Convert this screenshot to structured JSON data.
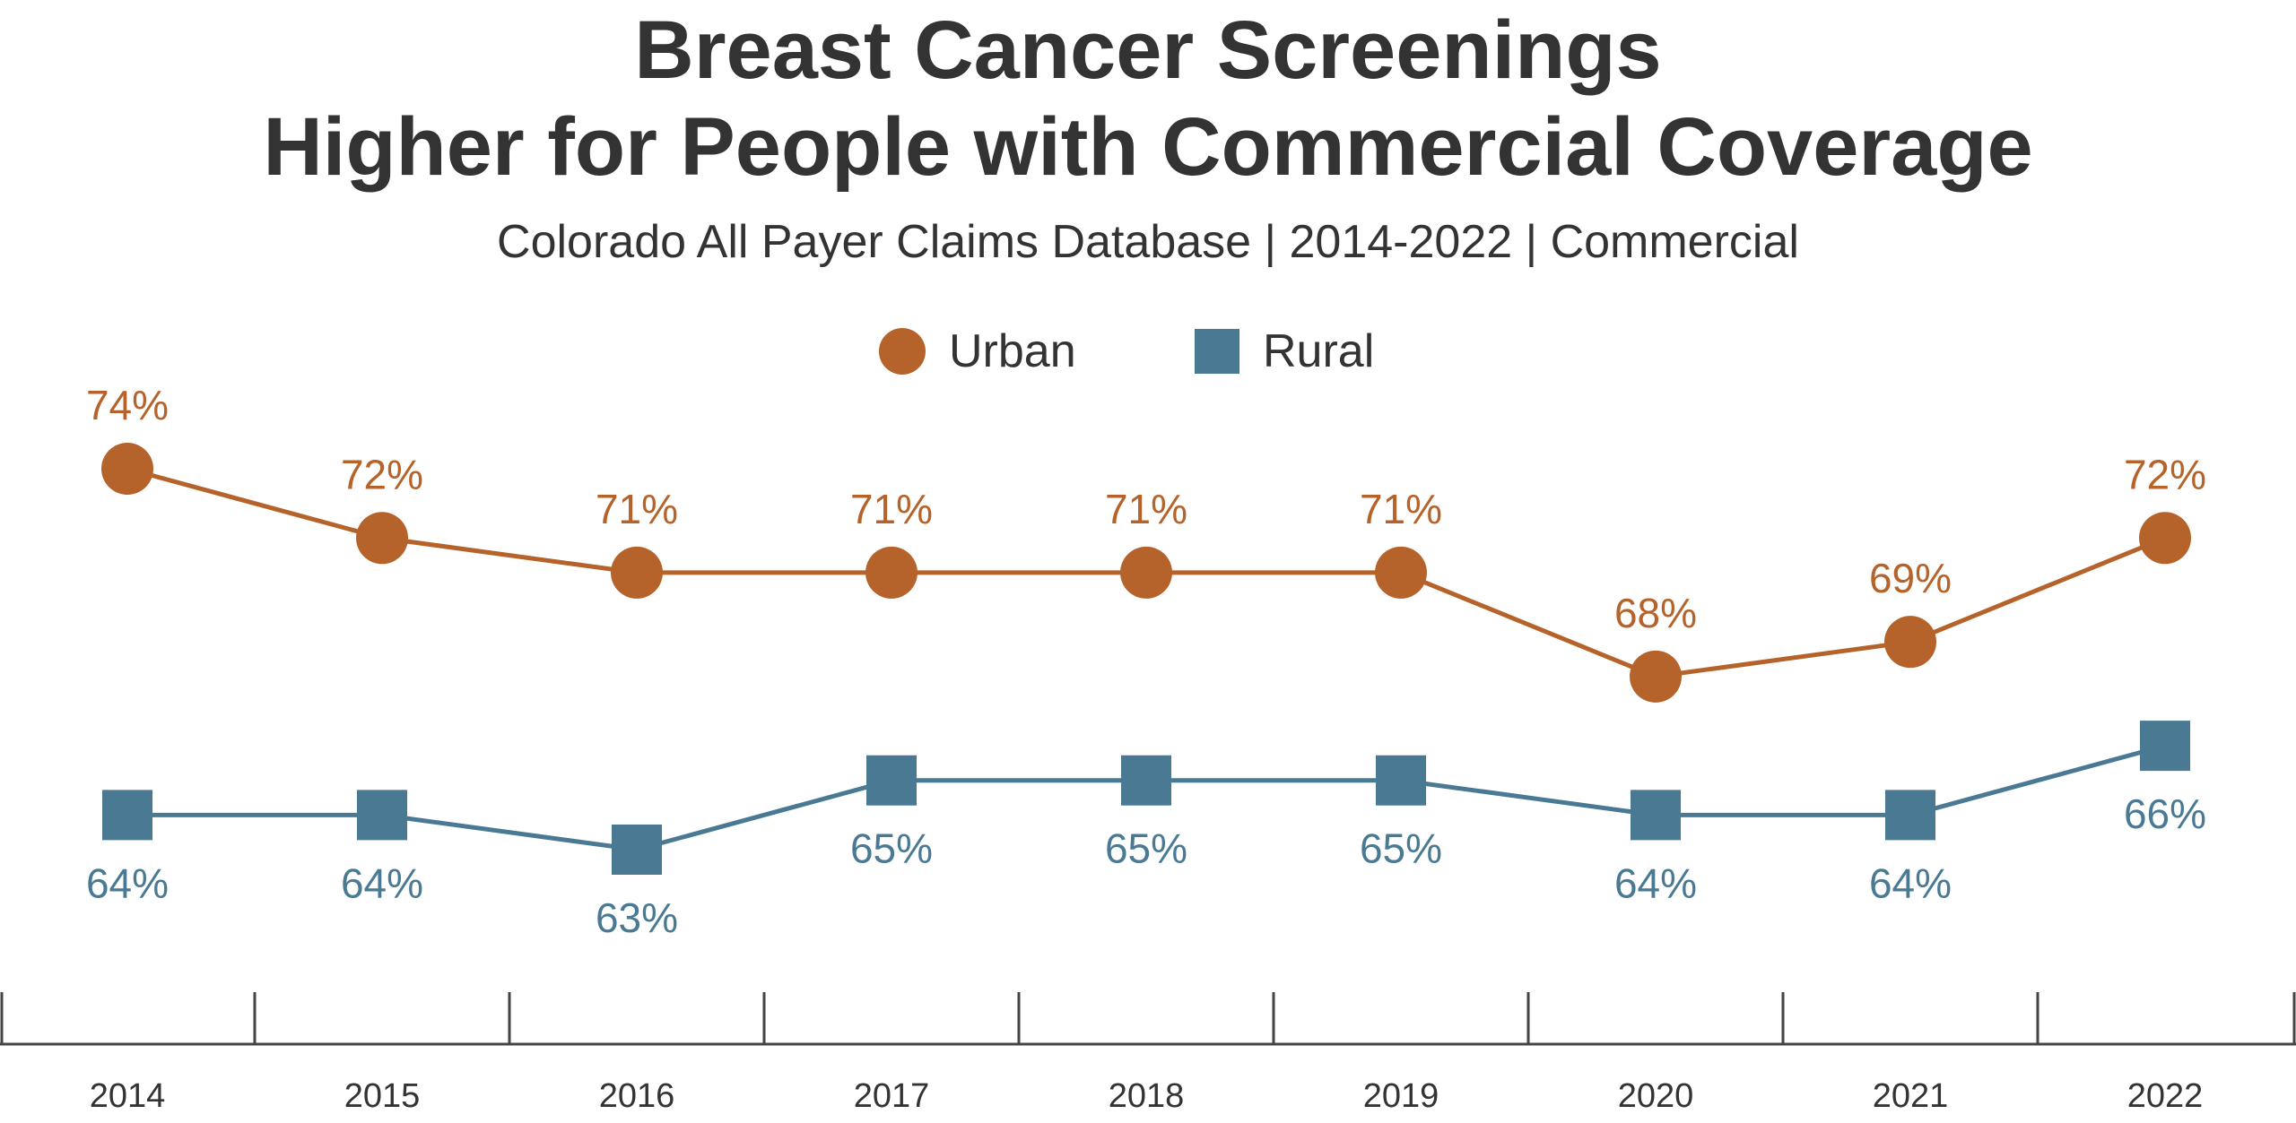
{
  "chart_data": {
    "type": "line",
    "title_line1": "Breast Cancer Screenings",
    "title_line2": "Higher for People with Commercial Coverage",
    "subtitle": "Colorado All Payer Claims Database | 2014-2022 | Commercial",
    "categories": [
      "2014",
      "2015",
      "2016",
      "2017",
      "2018",
      "2019",
      "2020",
      "2021",
      "2022"
    ],
    "series": [
      {
        "name": "Urban",
        "color": "#B5632A",
        "marker": "circle",
        "values": [
          74,
          72,
          71,
          71,
          71,
          71,
          68,
          69,
          72
        ],
        "labels": [
          "74%",
          "72%",
          "71%",
          "71%",
          "71%",
          "71%",
          "68%",
          "69%",
          "72%"
        ]
      },
      {
        "name": "Rural",
        "color": "#4A7A93",
        "marker": "square",
        "values": [
          64,
          64,
          63,
          65,
          65,
          65,
          64,
          64,
          66
        ],
        "labels": [
          "64%",
          "64%",
          "63%",
          "65%",
          "65%",
          "65%",
          "64%",
          "64%",
          "66%"
        ]
      }
    ],
    "grid": false,
    "legend_position": "top-center",
    "ylim": [
      60,
      76
    ]
  }
}
